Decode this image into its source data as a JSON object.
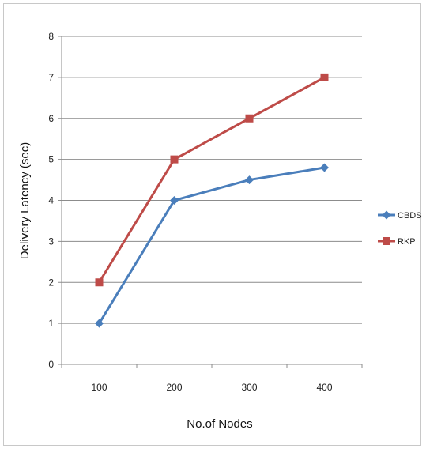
{
  "chart_data": {
    "type": "line",
    "title": "",
    "xlabel": "No.of Nodes",
    "ylabel": "Delivery Latency (sec)",
    "categories": [
      "100",
      "200",
      "300",
      "400"
    ],
    "ylim": [
      0,
      8
    ],
    "yticks": [
      "0",
      "1",
      "2",
      "3",
      "4",
      "5",
      "6",
      "7",
      "8"
    ],
    "grid": "horizontal",
    "legend_position": "right",
    "series": [
      {
        "name": "CBDS",
        "values": [
          1,
          4,
          4.5,
          4.8
        ],
        "color": "#4a7ebb",
        "marker": "diamond"
      },
      {
        "name": "RKP",
        "values": [
          2,
          5,
          6,
          7
        ],
        "color": "#be4b48",
        "marker": "square"
      }
    ]
  }
}
